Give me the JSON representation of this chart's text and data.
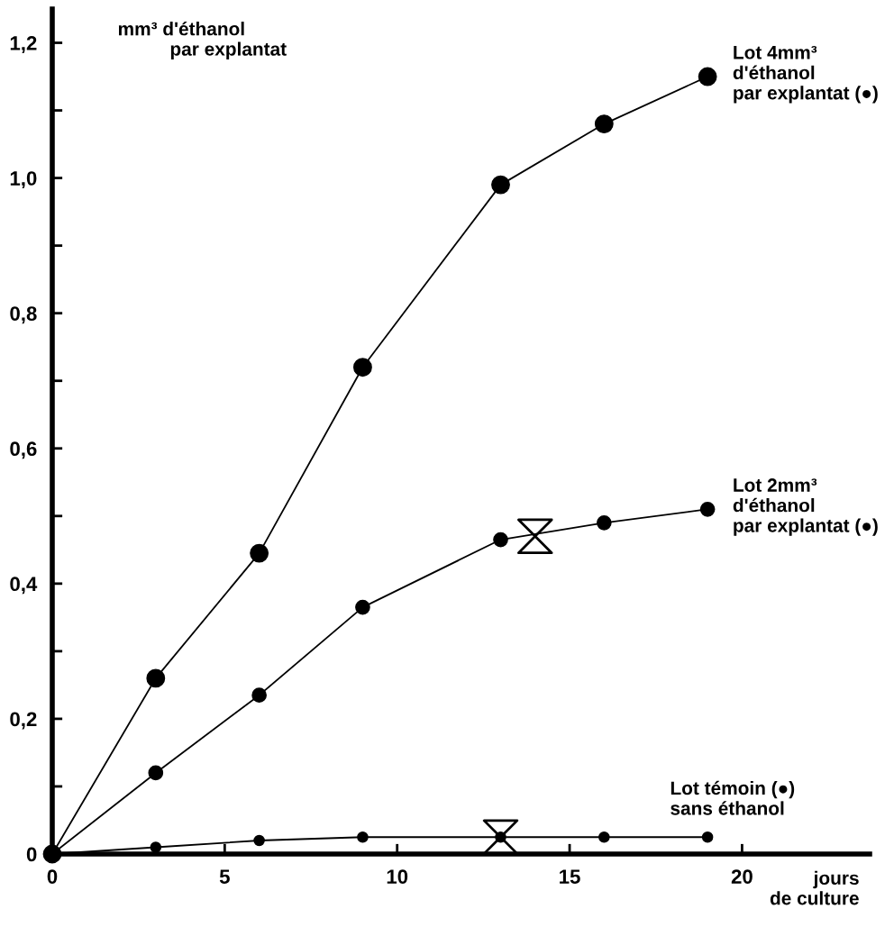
{
  "chart_data": {
    "type": "line",
    "ylabel": "mm³ d'éthanol\n          par explantat",
    "xlabel": "jours\nde culture",
    "x": [
      0,
      3,
      6,
      9,
      13,
      16,
      19
    ],
    "series": [
      {
        "name": "Lot 4mm³\nd'éthanol\npar explantat (●)",
        "color": "#000000",
        "values": [
          0,
          0.26,
          0.445,
          0.72,
          0.99,
          1.08,
          1.15
        ]
      },
      {
        "name": "Lot 2mm³\nd'éthanol\npar explantat (●)",
        "color": "#000000",
        "values": [
          0,
          0.12,
          0.235,
          0.365,
          0.465,
          0.49,
          0.51
        ]
      },
      {
        "name": "Lot témoin (●)\nsans éthanol",
        "color": "#000000",
        "values": [
          0,
          0.01,
          0.02,
          0.025,
          0.025,
          0.025,
          0.025
        ]
      },
      {
        "type": "scatter",
        "marker": "triangle",
        "color": "#000000",
        "x": [
          14,
          13
        ],
        "values": [
          0.47,
          0.025
        ]
      }
    ],
    "marker": "circle",
    "line_style": "solid",
    "grid": false,
    "legend": false,
    "xlim": [
      0,
      23.7
    ],
    "ylim": [
      0,
      1.25
    ],
    "xticks": [
      0,
      5,
      10,
      15,
      20
    ],
    "yticks": [
      0,
      {
        "value": 0.1,
        "label": null
      },
      {
        "value": 0.2,
        "label": "0,2"
      },
      {
        "value": 0.3,
        "label": null
      },
      {
        "value": 0.4,
        "label": "0,4"
      },
      {
        "value": 0.5,
        "label": null
      },
      {
        "value": 0.6,
        "label": "0,6"
      },
      {
        "value": 0.7,
        "label": null
      },
      {
        "value": 0.8,
        "label": "0,8"
      },
      {
        "value": 0.9,
        "label": null
      },
      {
        "value": 1.0,
        "label": "1,0"
      },
      {
        "value": 1.1,
        "label": null
      },
      {
        "value": 1.2,
        "label": "1,2"
      }
    ]
  }
}
